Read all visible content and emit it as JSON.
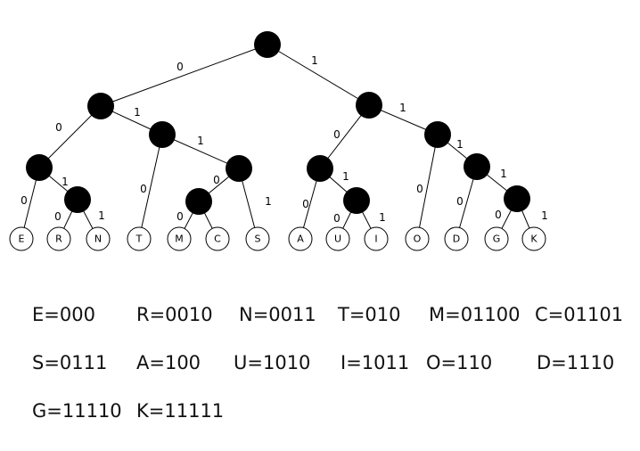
{
  "tree": {
    "nodes": [
      {
        "id": "n-root"
      },
      {
        "id": "n-0"
      },
      {
        "id": "n-1"
      },
      {
        "id": "n-00"
      },
      {
        "id": "n-01"
      },
      {
        "id": "n-001"
      },
      {
        "id": "n-011"
      },
      {
        "id": "n-0110"
      },
      {
        "id": "n-10"
      },
      {
        "id": "n-11"
      },
      {
        "id": "n-101"
      },
      {
        "id": "n-111"
      },
      {
        "id": "n-1111"
      },
      {
        "id": "leaf-E",
        "label": "E"
      },
      {
        "id": "leaf-R",
        "label": "R"
      },
      {
        "id": "leaf-N",
        "label": "N"
      },
      {
        "id": "leaf-T",
        "label": "T"
      },
      {
        "id": "leaf-M",
        "label": "M"
      },
      {
        "id": "leaf-C",
        "label": "C"
      },
      {
        "id": "leaf-S",
        "label": "S"
      },
      {
        "id": "leaf-A",
        "label": "A"
      },
      {
        "id": "leaf-U",
        "label": "U"
      },
      {
        "id": "leaf-I",
        "label": "I"
      },
      {
        "id": "leaf-O",
        "label": "O"
      },
      {
        "id": "leaf-D",
        "label": "D"
      },
      {
        "id": "leaf-G",
        "label": "G"
      },
      {
        "id": "leaf-K",
        "label": "K"
      }
    ],
    "edges": [
      {
        "from": "n-root",
        "to": "n-0",
        "label": "0"
      },
      {
        "from": "n-root",
        "to": "n-1",
        "label": "1"
      },
      {
        "from": "n-0",
        "to": "n-00",
        "label": "0"
      },
      {
        "from": "n-0",
        "to": "n-01",
        "label": "1"
      },
      {
        "from": "n-00",
        "to": "leaf-E",
        "label": "0"
      },
      {
        "from": "n-00",
        "to": "n-001",
        "label": "1"
      },
      {
        "from": "n-001",
        "to": "leaf-R",
        "label": "0"
      },
      {
        "from": "n-001",
        "to": "leaf-N",
        "label": "1"
      },
      {
        "from": "n-01",
        "to": "leaf-T",
        "label": "0"
      },
      {
        "from": "n-01",
        "to": "n-011",
        "label": "1"
      },
      {
        "from": "n-011",
        "to": "n-0110",
        "label": "0"
      },
      {
        "from": "n-011",
        "to": "leaf-S",
        "label": "1"
      },
      {
        "from": "n-0110",
        "to": "leaf-M",
        "label": "0"
      },
      {
        "from": "n-0110",
        "to": "leaf-C",
        "label": ""
      },
      {
        "from": "n-1",
        "to": "n-10",
        "label": "0"
      },
      {
        "from": "n-1",
        "to": "n-11",
        "label": "1"
      },
      {
        "from": "n-10",
        "to": "leaf-A",
        "label": "0"
      },
      {
        "from": "n-10",
        "to": "n-101",
        "label": "1"
      },
      {
        "from": "n-101",
        "to": "leaf-U",
        "label": "0"
      },
      {
        "from": "n-101",
        "to": "leaf-I",
        "label": "1"
      },
      {
        "from": "n-11",
        "to": "leaf-O",
        "label": "0"
      },
      {
        "from": "n-11",
        "to": "n-111",
        "label": "1"
      },
      {
        "from": "n-111",
        "to": "leaf-D",
        "label": "0"
      },
      {
        "from": "n-111",
        "to": "n-1111",
        "label": "1"
      },
      {
        "from": "n-1111",
        "to": "leaf-G",
        "label": "0"
      },
      {
        "from": "n-1111",
        "to": "leaf-K",
        "label": "1"
      }
    ]
  },
  "codes": [
    {
      "id": "E",
      "text": "E=000"
    },
    {
      "id": "R",
      "text": "R=0010"
    },
    {
      "id": "N",
      "text": "N=0011"
    },
    {
      "id": "T",
      "text": "T=010"
    },
    {
      "id": "M",
      "text": "M=01100"
    },
    {
      "id": "C",
      "text": "C=01101"
    },
    {
      "id": "S",
      "text": "S=0111"
    },
    {
      "id": "A",
      "text": "A=100"
    },
    {
      "id": "U",
      "text": "U=1010"
    },
    {
      "id": "I",
      "text": "I=1011"
    },
    {
      "id": "O",
      "text": "O=110"
    },
    {
      "id": "D",
      "text": "D=1110"
    },
    {
      "id": "G",
      "text": "G=11110"
    },
    {
      "id": "K",
      "text": "K=11111"
    }
  ]
}
